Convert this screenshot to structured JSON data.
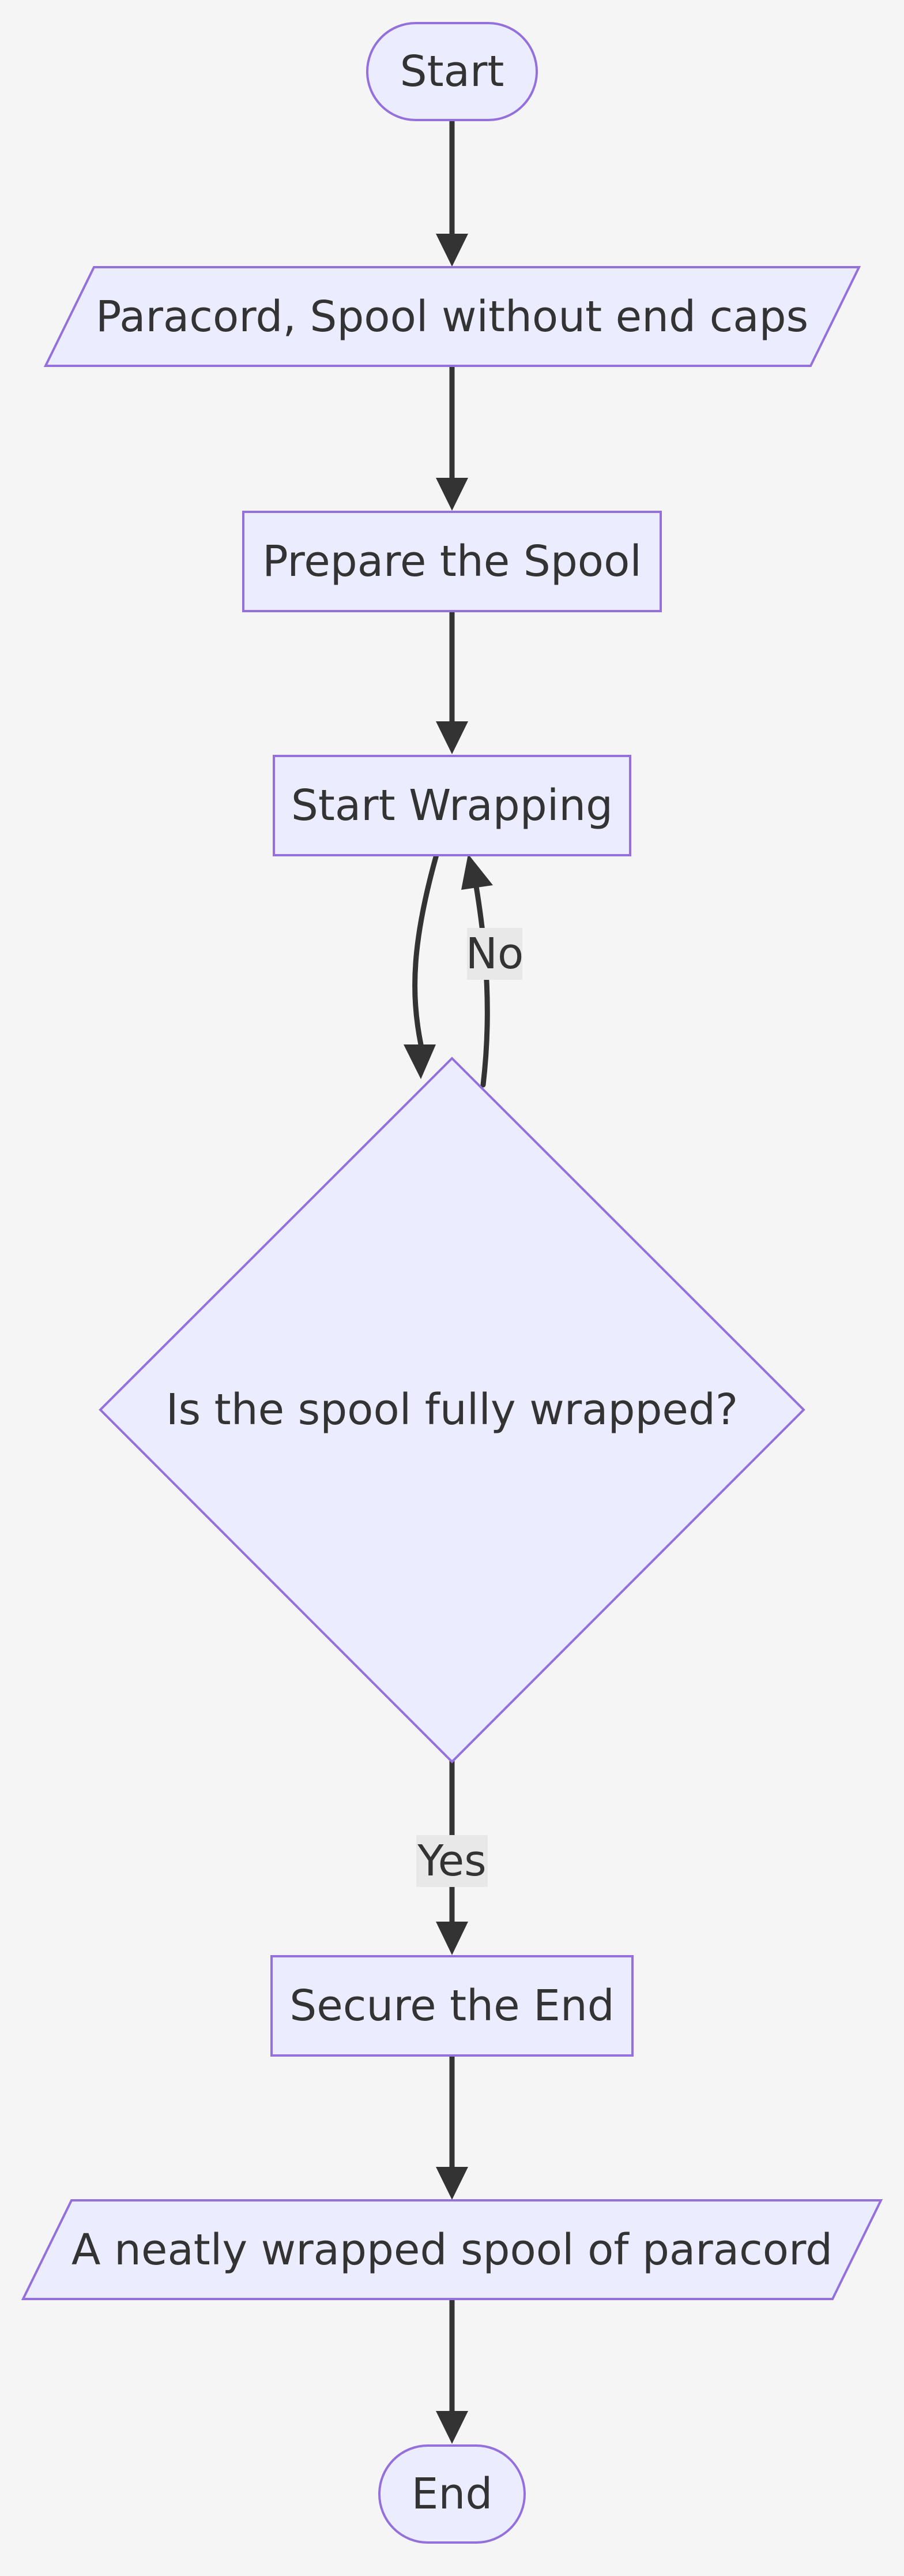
{
  "diagram": {
    "type": "flowchart",
    "nodes": {
      "start": "Start",
      "input": "Paracord, Spool without end caps",
      "prepare": "Prepare the Spool",
      "wrap": "Start Wrapping",
      "decision": "Is the spool fully wrapped?",
      "secure": "Secure the End",
      "output": "A neatly wrapped spool of paracord",
      "end": "End"
    },
    "edges": {
      "no_label": "No",
      "yes_label": "Yes"
    }
  },
  "colors": {
    "node_fill": "#ececff",
    "node_stroke": "#9370db",
    "edge": "#333333",
    "background": "#f5f5f5",
    "edge_label_bg": "#e8e8e8"
  }
}
